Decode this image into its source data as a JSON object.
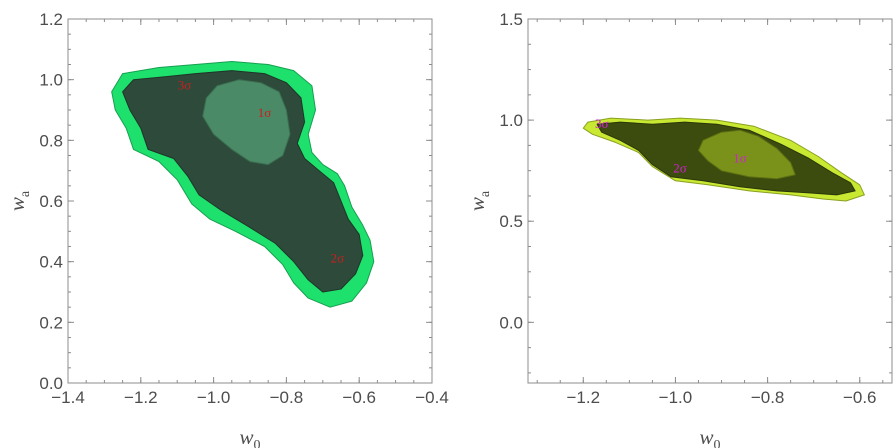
{
  "chart_data": [
    {
      "type": "contour",
      "xlabel": "w",
      "xlabel_sub": "0",
      "ylabel": "w",
      "ylabel_sub": "a",
      "xlim": [
        -1.4,
        -0.4
      ],
      "ylim": [
        0.0,
        1.2
      ],
      "xticks": [
        -1.4,
        -1.2,
        -1.0,
        -0.8,
        -0.6,
        -0.4
      ],
      "xtick_labels": [
        "−1.4",
        "−1.2",
        "−1.0",
        "−0.8",
        "−0.6",
        "−0.4"
      ],
      "yticks": [
        0.0,
        0.2,
        0.4,
        0.6,
        0.8,
        1.0,
        1.2
      ],
      "ytick_labels": [
        "0.0",
        "0.2",
        "0.4",
        "0.6",
        "0.8",
        "1.0",
        "1.2"
      ],
      "grid": false,
      "regions": [
        {
          "level": "3σ",
          "fill": "#1ee06c",
          "stroke": "#15a050",
          "points": [
            [
              -1.28,
              0.96
            ],
            [
              -1.25,
              1.02
            ],
            [
              -1.15,
              1.04
            ],
            [
              -1.05,
              1.05
            ],
            [
              -0.95,
              1.06
            ],
            [
              -0.85,
              1.05
            ],
            [
              -0.78,
              1.03
            ],
            [
              -0.73,
              0.98
            ],
            [
              -0.72,
              0.9
            ],
            [
              -0.74,
              0.82
            ],
            [
              -0.73,
              0.76
            ],
            [
              -0.7,
              0.72
            ],
            [
              -0.66,
              0.69
            ],
            [
              -0.64,
              0.65
            ],
            [
              -0.62,
              0.58
            ],
            [
              -0.59,
              0.52
            ],
            [
              -0.57,
              0.47
            ],
            [
              -0.56,
              0.4
            ],
            [
              -0.58,
              0.33
            ],
            [
              -0.62,
              0.27
            ],
            [
              -0.68,
              0.25
            ],
            [
              -0.74,
              0.28
            ],
            [
              -0.78,
              0.33
            ],
            [
              -0.81,
              0.39
            ],
            [
              -0.86,
              0.45
            ],
            [
              -0.94,
              0.5
            ],
            [
              -1.01,
              0.54
            ],
            [
              -1.06,
              0.59
            ],
            [
              -1.1,
              0.67
            ],
            [
              -1.15,
              0.73
            ],
            [
              -1.22,
              0.77
            ],
            [
              -1.24,
              0.84
            ],
            [
              -1.27,
              0.9
            ]
          ]
        },
        {
          "level": "2σ",
          "fill": "#2d4a3a",
          "stroke": "#1e3528",
          "points": [
            [
              -1.25,
              0.96
            ],
            [
              -1.22,
              1.0
            ],
            [
              -1.13,
              1.01
            ],
            [
              -1.05,
              1.02
            ],
            [
              -0.95,
              1.03
            ],
            [
              -0.86,
              1.02
            ],
            [
              -0.8,
              0.99
            ],
            [
              -0.76,
              0.94
            ],
            [
              -0.75,
              0.86
            ],
            [
              -0.77,
              0.79
            ],
            [
              -0.75,
              0.74
            ],
            [
              -0.71,
              0.7
            ],
            [
              -0.67,
              0.66
            ],
            [
              -0.65,
              0.6
            ],
            [
              -0.63,
              0.54
            ],
            [
              -0.6,
              0.49
            ],
            [
              -0.59,
              0.42
            ],
            [
              -0.61,
              0.36
            ],
            [
              -0.65,
              0.31
            ],
            [
              -0.7,
              0.3
            ],
            [
              -0.74,
              0.34
            ],
            [
              -0.78,
              0.4
            ],
            [
              -0.83,
              0.46
            ],
            [
              -0.91,
              0.52
            ],
            [
              -0.98,
              0.57
            ],
            [
              -1.04,
              0.62
            ],
            [
              -1.07,
              0.68
            ],
            [
              -1.11,
              0.74
            ],
            [
              -1.18,
              0.77
            ],
            [
              -1.2,
              0.84
            ],
            [
              -1.23,
              0.9
            ]
          ]
        },
        {
          "level": "1σ",
          "fill": "#4a8a66",
          "stroke": "#3a6e50",
          "points": [
            [
              -1.02,
              0.94
            ],
            [
              -0.99,
              0.98
            ],
            [
              -0.93,
              1.0
            ],
            [
              -0.87,
              0.99
            ],
            [
              -0.82,
              0.96
            ],
            [
              -0.8,
              0.9
            ],
            [
              -0.79,
              0.82
            ],
            [
              -0.81,
              0.75
            ],
            [
              -0.85,
              0.72
            ],
            [
              -0.9,
              0.73
            ],
            [
              -0.95,
              0.77
            ],
            [
              -1.0,
              0.82
            ],
            [
              -1.03,
              0.88
            ]
          ]
        }
      ],
      "annotations": [
        {
          "text": "1σ",
          "x": -0.86,
          "y": 0.89,
          "color": "#cc1f1f"
        },
        {
          "text": "2σ",
          "x": -0.66,
          "y": 0.41,
          "color": "#cc1f1f"
        },
        {
          "text": "3σ",
          "x": -1.08,
          "y": 0.98,
          "color": "#cc1f1f"
        }
      ]
    },
    {
      "type": "contour",
      "xlabel": "w",
      "xlabel_sub": "0",
      "ylabel": "w",
      "ylabel_sub": "a",
      "xlim": [
        -1.32,
        -0.53
      ],
      "ylim": [
        -0.3,
        1.5
      ],
      "xticks": [
        -1.2,
        -1.0,
        -0.8,
        -0.6
      ],
      "xtick_labels": [
        "−1.2",
        "−1.0",
        "−0.8",
        "−0.6"
      ],
      "yticks": [
        0.0,
        0.5,
        1.0,
        1.5
      ],
      "ytick_labels": [
        "0.0",
        "0.5",
        "1.0",
        "1.5"
      ],
      "grid": false,
      "regions": [
        {
          "level": "3σ",
          "fill": "#c8e832",
          "stroke": "#8aa020",
          "points": [
            [
              -1.19,
              0.99
            ],
            [
              -1.14,
              1.01
            ],
            [
              -1.06,
              1.0
            ],
            [
              -0.99,
              1.01
            ],
            [
              -0.91,
              1.0
            ],
            [
              -0.83,
              0.97
            ],
            [
              -0.75,
              0.9
            ],
            [
              -0.69,
              0.82
            ],
            [
              -0.64,
              0.74
            ],
            [
              -0.6,
              0.68
            ],
            [
              -0.59,
              0.63
            ],
            [
              -0.63,
              0.6
            ],
            [
              -0.68,
              0.61
            ],
            [
              -0.75,
              0.63
            ],
            [
              -0.84,
              0.65
            ],
            [
              -0.93,
              0.68
            ],
            [
              -1.0,
              0.7
            ],
            [
              -1.05,
              0.77
            ],
            [
              -1.08,
              0.84
            ],
            [
              -1.13,
              0.89
            ],
            [
              -1.18,
              0.93
            ],
            [
              -1.2,
              0.96
            ]
          ]
        },
        {
          "level": "2σ",
          "fill": "#3c4c0e",
          "stroke": "#2a360a",
          "points": [
            [
              -1.17,
              0.98
            ],
            [
              -1.12,
              0.99
            ],
            [
              -1.05,
              0.98
            ],
            [
              -0.98,
              0.99
            ],
            [
              -0.91,
              0.98
            ],
            [
              -0.84,
              0.95
            ],
            [
              -0.77,
              0.88
            ],
            [
              -0.71,
              0.81
            ],
            [
              -0.66,
              0.74
            ],
            [
              -0.62,
              0.69
            ],
            [
              -0.61,
              0.65
            ],
            [
              -0.65,
              0.63
            ],
            [
              -0.71,
              0.64
            ],
            [
              -0.78,
              0.65
            ],
            [
              -0.86,
              0.67
            ],
            [
              -0.94,
              0.7
            ],
            [
              -1.01,
              0.72
            ],
            [
              -1.05,
              0.78
            ],
            [
              -1.08,
              0.85
            ],
            [
              -1.12,
              0.9
            ],
            [
              -1.16,
              0.94
            ]
          ]
        },
        {
          "level": "1σ",
          "fill": "#7a921a",
          "stroke": "#5e7012",
          "points": [
            [
              -0.94,
              0.9
            ],
            [
              -0.9,
              0.94
            ],
            [
              -0.86,
              0.95
            ],
            [
              -0.82,
              0.92
            ],
            [
              -0.78,
              0.86
            ],
            [
              -0.75,
              0.79
            ],
            [
              -0.74,
              0.73
            ],
            [
              -0.78,
              0.71
            ],
            [
              -0.84,
              0.72
            ],
            [
              -0.9,
              0.75
            ],
            [
              -0.93,
              0.8
            ],
            [
              -0.95,
              0.85
            ]
          ]
        }
      ],
      "annotations": [
        {
          "text": "1σ",
          "x": -0.86,
          "y": 0.81,
          "color": "#d020d0"
        },
        {
          "text": "2σ",
          "x": -0.99,
          "y": 0.76,
          "color": "#d020d0"
        },
        {
          "text": "3σ",
          "x": -1.16,
          "y": 0.98,
          "color": "#d020d0"
        }
      ]
    }
  ]
}
